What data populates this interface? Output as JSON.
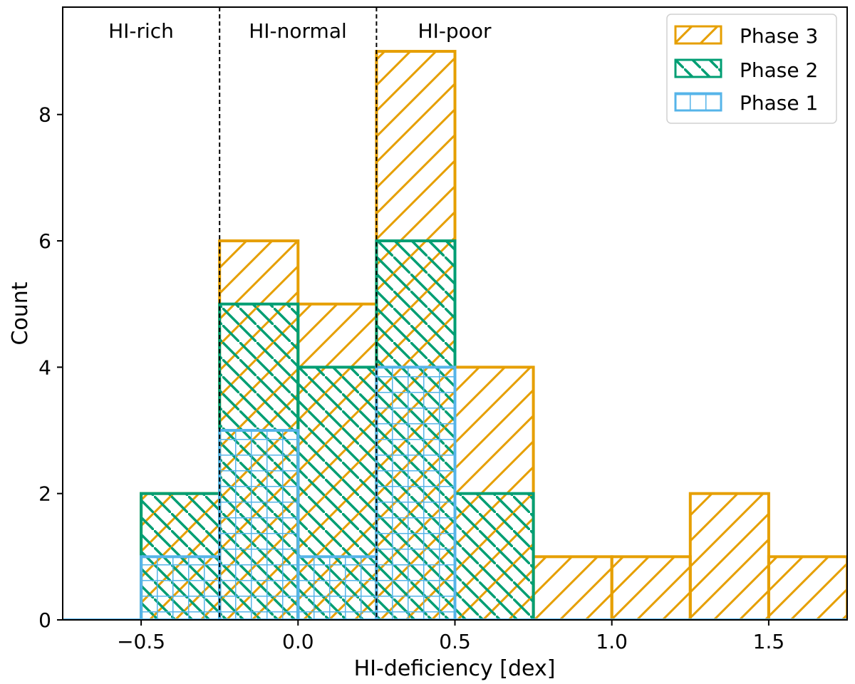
{
  "chart_data": {
    "type": "histogram",
    "xlabel": "HI-deficiency [dex]",
    "ylabel": "Count",
    "xlim": [
      -0.75,
      1.75
    ],
    "ylim": [
      0,
      9.7
    ],
    "xticks": [
      -0.5,
      0.0,
      0.5,
      1.0,
      1.5
    ],
    "xtick_labels": [
      "−0.5",
      "0.0",
      "0.5",
      "1.0",
      "1.5"
    ],
    "yticks": [
      0,
      2,
      4,
      6,
      8
    ],
    "ytick_labels": [
      "0",
      "2",
      "4",
      "6",
      "8"
    ],
    "bin_edges": [
      -0.75,
      -0.5,
      -0.25,
      0.0,
      0.25,
      0.5,
      0.75,
      1.0,
      1.25,
      1.5,
      1.75
    ],
    "series": [
      {
        "name": "Phase 3",
        "color": "#e69f00",
        "hatch": "diagonal-forward",
        "values": [
          0,
          2,
          6,
          5,
          9,
          4,
          1,
          1,
          2,
          1
        ]
      },
      {
        "name": "Phase 2",
        "color": "#009e73",
        "hatch": "diagonal-back",
        "values": [
          0,
          2,
          5,
          4,
          6,
          2,
          0,
          0,
          0,
          0
        ]
      },
      {
        "name": "Phase 1",
        "color": "#56b4e9",
        "hatch": "grid",
        "values": [
          0,
          1,
          3,
          1,
          4,
          0,
          0,
          0,
          0,
          0
        ]
      }
    ],
    "vlines": [
      -0.25,
      0.25
    ],
    "region_labels": [
      {
        "text": "HI-rich",
        "x": -0.375
      },
      {
        "text": "HI-normal",
        "x": 0.0
      },
      {
        "text": "HI-poor",
        "x": 0.5
      }
    ],
    "legend_position": "top-right"
  }
}
